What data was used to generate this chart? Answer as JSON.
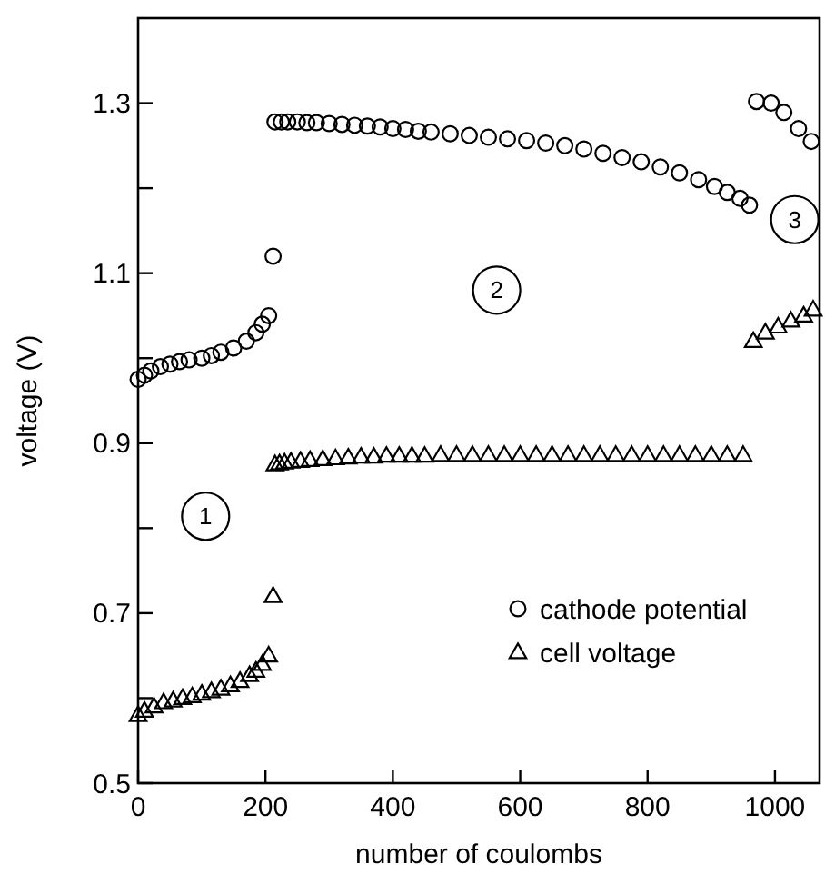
{
  "chart_data": {
    "type": "scatter",
    "xlabel": "number of coulombs",
    "ylabel": "voltage (V)",
    "xlim": [
      0,
      1070
    ],
    "xticks": [
      0,
      200,
      400,
      600,
      800,
      1000
    ],
    "ylim": [
      0.5,
      1.4
    ],
    "yticks": [
      0.5,
      {
        "value": 0.6,
        "label": null
      },
      0.7,
      {
        "value": 0.8,
        "label": null
      },
      0.9,
      {
        "value": 1.0,
        "label": null
      },
      1.1,
      {
        "value": 1.2,
        "label": null
      },
      1.3
    ],
    "grid": false,
    "legend": "bottom right",
    "series": [
      {
        "name": "cathode potential",
        "color": "#000000",
        "marker": "circle",
        "x": [
          0,
          10,
          20,
          35,
          50,
          65,
          80,
          100,
          115,
          130,
          150,
          170,
          185,
          195,
          205,
          212,
          215,
          225,
          235,
          250,
          265,
          280,
          300,
          320,
          340,
          360,
          380,
          400,
          420,
          440,
          460,
          490,
          520,
          550,
          580,
          610,
          640,
          670,
          700,
          730,
          760,
          790,
          820,
          850,
          880,
          905,
          925,
          945,
          960,
          971,
          994,
          1014,
          1037,
          1057
        ],
        "values": [
          0.975,
          0.98,
          0.985,
          0.99,
          0.993,
          0.996,
          0.998,
          1.0,
          1.003,
          1.007,
          1.012,
          1.02,
          1.03,
          1.04,
          1.05,
          1.12,
          1.278,
          1.278,
          1.278,
          1.278,
          1.277,
          1.277,
          1.276,
          1.275,
          1.274,
          1.273,
          1.272,
          1.27,
          1.269,
          1.267,
          1.266,
          1.264,
          1.262,
          1.26,
          1.258,
          1.256,
          1.253,
          1.25,
          1.246,
          1.241,
          1.236,
          1.231,
          1.225,
          1.218,
          1.21,
          1.202,
          1.195,
          1.188,
          1.18,
          1.302,
          1.3,
          1.289,
          1.27,
          1.255
        ]
      },
      {
        "name": "cell voltage",
        "color": "#000000",
        "marker": "triangle",
        "x": [
          0,
          10,
          25,
          40,
          55,
          70,
          85,
          100,
          115,
          130,
          145,
          160,
          175,
          185,
          195,
          205,
          212,
          215,
          222,
          230,
          240,
          255,
          270,
          290,
          310,
          330,
          350,
          370,
          390,
          410,
          430,
          450,
          475,
          500,
          525,
          550,
          575,
          600,
          625,
          650,
          675,
          700,
          725,
          750,
          775,
          800,
          825,
          850,
          875,
          900,
          925,
          950,
          966,
          985,
          1005,
          1025,
          1045,
          1060
        ],
        "values": [
          0.58,
          0.585,
          0.59,
          0.595,
          0.597,
          0.6,
          0.602,
          0.605,
          0.608,
          0.611,
          0.615,
          0.62,
          0.627,
          0.632,
          0.64,
          0.65,
          0.72,
          0.875,
          0.876,
          0.877,
          0.878,
          0.879,
          0.88,
          0.881,
          0.882,
          0.883,
          0.884,
          0.884,
          0.885,
          0.885,
          0.885,
          0.885,
          0.886,
          0.886,
          0.886,
          0.886,
          0.886,
          0.886,
          0.886,
          0.886,
          0.886,
          0.886,
          0.886,
          0.886,
          0.886,
          0.886,
          0.886,
          0.886,
          0.886,
          0.886,
          0.886,
          0.886,
          1.02,
          1.03,
          1.037,
          1.044,
          1.05,
          1.057
        ]
      }
    ],
    "annotations": [
      {
        "text": "1",
        "x": 106,
        "y": 0.814
      },
      {
        "text": "2",
        "x": 563,
        "y": 1.08
      },
      {
        "text": "3",
        "x": 1031,
        "y": 1.163
      }
    ]
  }
}
